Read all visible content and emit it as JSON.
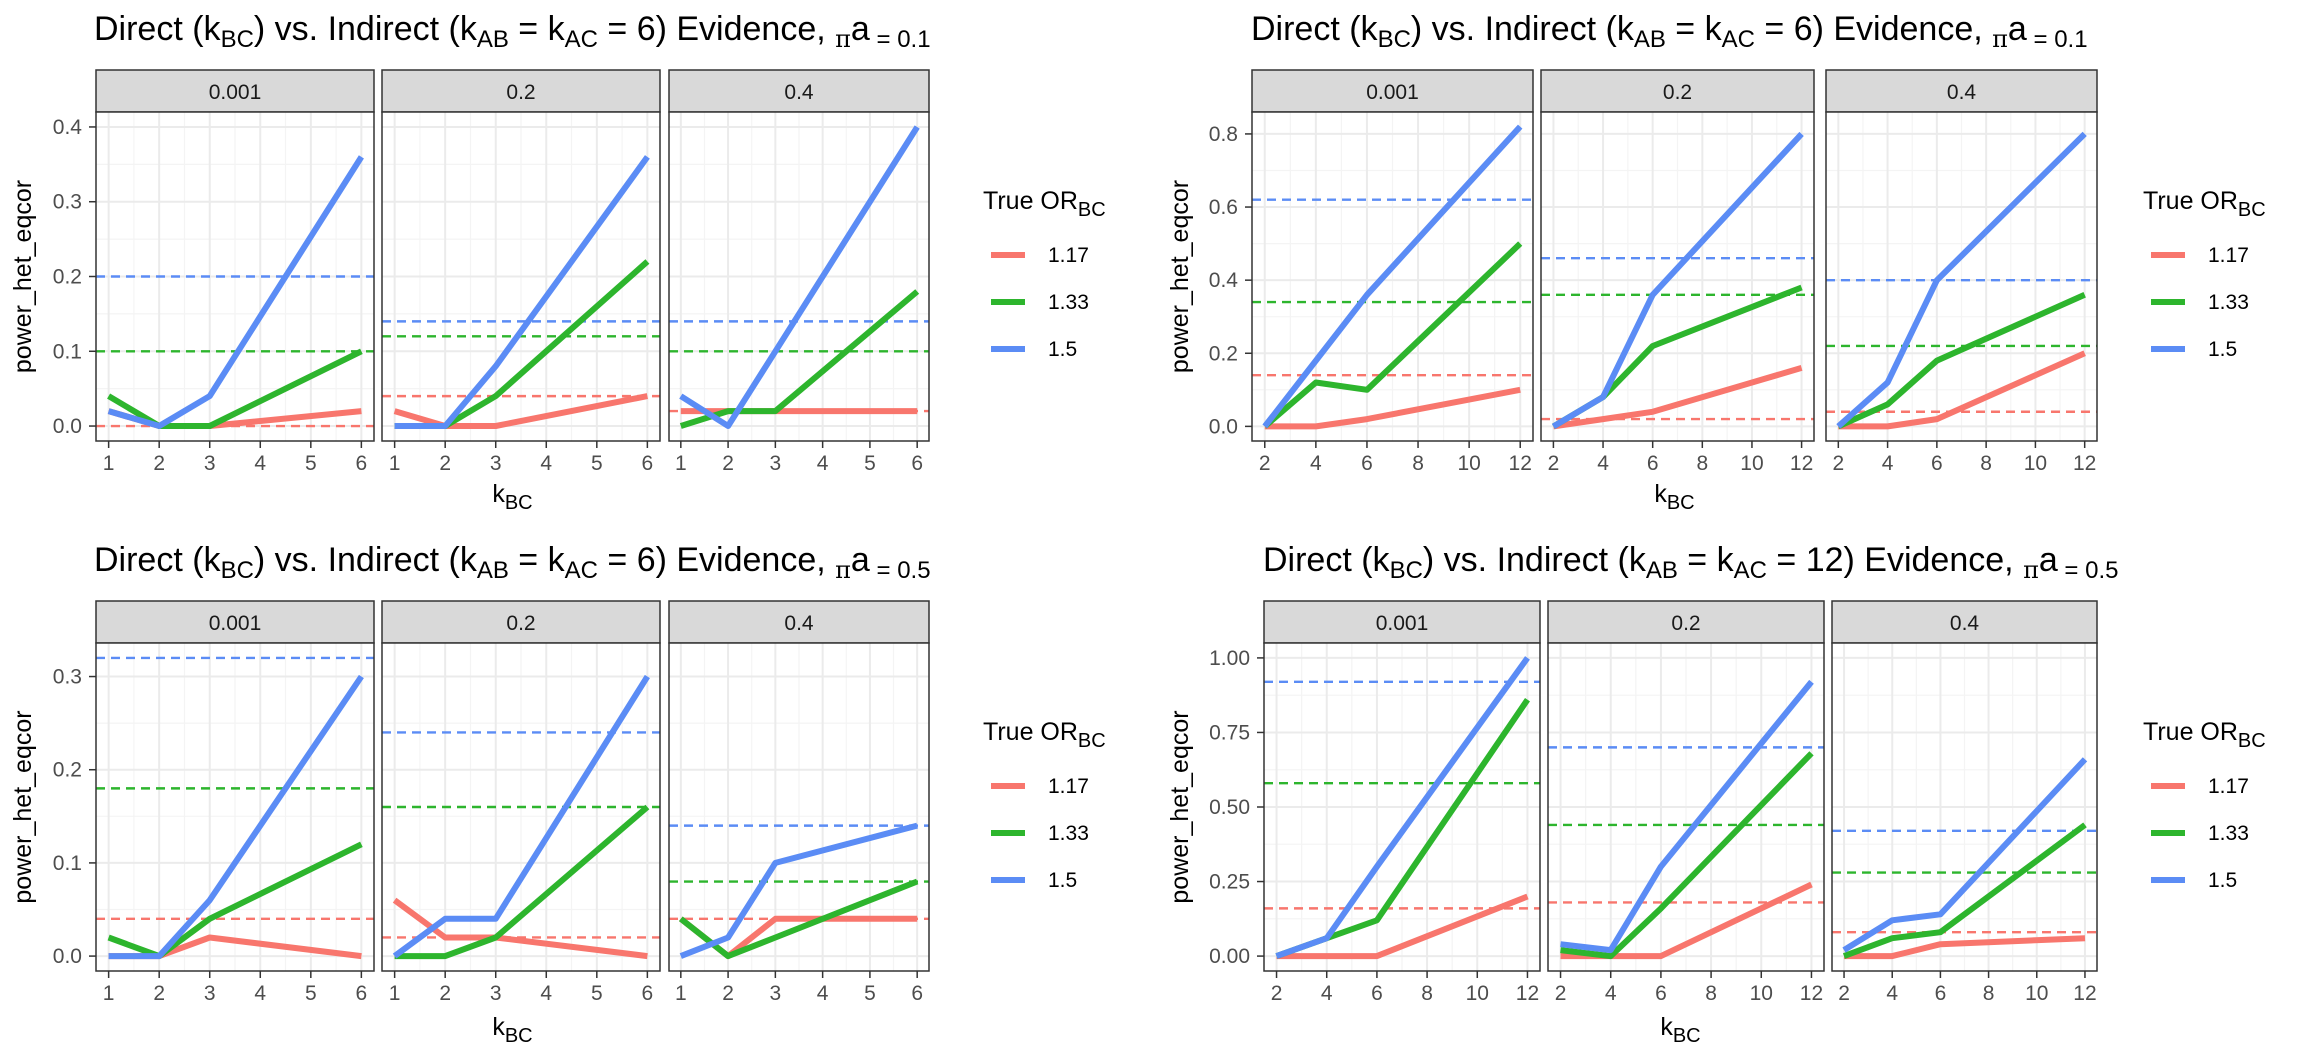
{
  "colors": {
    "1.17": "#F8766D",
    "1.33": "#2DB52D",
    "1.5": "#5B8CF5"
  },
  "chart_data": [
    {
      "type": "line",
      "title_parts": [
        "Direct (k",
        "BC",
        ") vs. Indirect (k",
        "AB",
        " = k",
        "AC",
        " = 6) Evidence, ",
        "π",
        "a",
        " = 0.1"
      ],
      "ylabel": "power_het_eqcor",
      "xlabel_parts": [
        "k",
        "BC"
      ],
      "legend_title_parts": [
        "True OR",
        "BC"
      ],
      "legend": [
        "1.17",
        "1.33",
        "1.5"
      ],
      "x": [
        1,
        2,
        3,
        4,
        5,
        6
      ],
      "xlim": [
        0.75,
        6.25
      ],
      "xticks": [
        1,
        2,
        3,
        4,
        5,
        6
      ],
      "xtick_labels": [
        "1",
        "2",
        "3",
        "4",
        "5",
        "6"
      ],
      "ylim": [
        -0.02,
        0.42
      ],
      "yticks": [
        0.0,
        0.1,
        0.2,
        0.3,
        0.4
      ],
      "ytick_labels": [
        "0.0",
        "0.1",
        "0.2",
        "0.3",
        "0.4"
      ],
      "facets": [
        {
          "label": "0.001",
          "series": [
            {
              "name": "1.17",
              "x": [
                1,
                2,
                3,
                6
              ],
              "values": [
                0.02,
                0.0,
                0.0,
                0.02
              ]
            },
            {
              "name": "1.33",
              "x": [
                1,
                2,
                3,
                6
              ],
              "values": [
                0.04,
                0.0,
                0.0,
                0.1
              ]
            },
            {
              "name": "1.5",
              "x": [
                1,
                2,
                3,
                6
              ],
              "values": [
                0.02,
                0.0,
                0.04,
                0.36
              ]
            }
          ],
          "reference": {
            "1.17": 0.0,
            "1.33": 0.1,
            "1.5": 0.2
          }
        },
        {
          "label": "0.2",
          "series": [
            {
              "name": "1.17",
              "x": [
                1,
                2,
                3,
                6
              ],
              "values": [
                0.02,
                0.0,
                0.0,
                0.04
              ]
            },
            {
              "name": "1.33",
              "x": [
                1,
                2,
                3,
                6
              ],
              "values": [
                0.0,
                0.0,
                0.04,
                0.22
              ]
            },
            {
              "name": "1.5",
              "x": [
                1,
                2,
                3,
                6
              ],
              "values": [
                0.0,
                0.0,
                0.08,
                0.36
              ]
            }
          ],
          "reference": {
            "1.17": 0.04,
            "1.33": 0.12,
            "1.5": 0.14
          }
        },
        {
          "label": "0.4",
          "series": [
            {
              "name": "1.17",
              "x": [
                1,
                2,
                3,
                6
              ],
              "values": [
                0.02,
                0.02,
                0.02,
                0.02
              ]
            },
            {
              "name": "1.33",
              "x": [
                1,
                2,
                3,
                6
              ],
              "values": [
                0.0,
                0.02,
                0.02,
                0.18
              ]
            },
            {
              "name": "1.5",
              "x": [
                1,
                2,
                3,
                6
              ],
              "values": [
                0.04,
                0.0,
                0.1,
                0.4
              ]
            }
          ],
          "reference": {
            "1.17": 0.02,
            "1.33": 0.1,
            "1.5": 0.14
          }
        }
      ]
    },
    {
      "type": "line",
      "title_parts": [
        "Direct (k",
        "BC",
        ") vs. Indirect (k",
        "AB",
        " = k",
        "AC",
        " = 6) Evidence, ",
        "π",
        "a",
        " = 0.1"
      ],
      "ylabel": "power_het_eqcor",
      "xlabel_parts": [
        "k",
        "BC"
      ],
      "legend_title_parts": [
        "True OR",
        "BC"
      ],
      "legend": [
        "1.17",
        "1.33",
        "1.5"
      ],
      "x": [
        2,
        4,
        6,
        12
      ],
      "xlim": [
        1.5,
        12.5
      ],
      "xticks": [
        2,
        4,
        6,
        8,
        10,
        12
      ],
      "xtick_labels": [
        "2",
        "4",
        "6",
        "8",
        "10",
        "12"
      ],
      "ylim": [
        -0.04,
        0.86
      ],
      "yticks": [
        0.0,
        0.2,
        0.4,
        0.6,
        0.8
      ],
      "ytick_labels": [
        "0.0",
        "0.2",
        "0.4",
        "0.6",
        "0.8"
      ],
      "facets": [
        {
          "label": "0.001",
          "series": [
            {
              "name": "1.17",
              "x": [
                2,
                4,
                6,
                12
              ],
              "values": [
                0.0,
                0.0,
                0.02,
                0.1
              ]
            },
            {
              "name": "1.33",
              "x": [
                2,
                4,
                6,
                12
              ],
              "values": [
                0.0,
                0.12,
                0.1,
                0.5
              ]
            },
            {
              "name": "1.5",
              "x": [
                2,
                4,
                6,
                12
              ],
              "values": [
                0.0,
                0.18,
                0.36,
                0.82
              ]
            }
          ],
          "reference": {
            "1.17": 0.14,
            "1.33": 0.34,
            "1.5": 0.62
          }
        },
        {
          "label": "0.2",
          "series": [
            {
              "name": "1.17",
              "x": [
                2,
                4,
                6,
                12
              ],
              "values": [
                0.0,
                0.02,
                0.04,
                0.16
              ]
            },
            {
              "name": "1.33",
              "x": [
                2,
                4,
                6,
                12
              ],
              "values": [
                0.0,
                0.08,
                0.22,
                0.38
              ]
            },
            {
              "name": "1.5",
              "x": [
                2,
                4,
                6,
                12
              ],
              "values": [
                0.0,
                0.08,
                0.36,
                0.8
              ]
            }
          ],
          "reference": {
            "1.17": 0.02,
            "1.33": 0.36,
            "1.5": 0.46
          }
        },
        {
          "label": "0.4",
          "series": [
            {
              "name": "1.17",
              "x": [
                2,
                4,
                6,
                12
              ],
              "values": [
                0.0,
                0.0,
                0.02,
                0.2
              ]
            },
            {
              "name": "1.33",
              "x": [
                2,
                4,
                6,
                12
              ],
              "values": [
                0.0,
                0.06,
                0.18,
                0.36
              ]
            },
            {
              "name": "1.5",
              "x": [
                2,
                4,
                6,
                12
              ],
              "values": [
                0.0,
                0.12,
                0.4,
                0.8
              ]
            }
          ],
          "reference": {
            "1.17": 0.04,
            "1.33": 0.22,
            "1.5": 0.4
          }
        }
      ]
    },
    {
      "type": "line",
      "title_parts": [
        "Direct (k",
        "BC",
        ") vs. Indirect (k",
        "AB",
        " = k",
        "AC",
        " = 6) Evidence, ",
        "π",
        "a",
        " = 0.5"
      ],
      "ylabel": "power_het_eqcor",
      "xlabel_parts": [
        "k",
        "BC"
      ],
      "legend_title_parts": [
        "True OR",
        "BC"
      ],
      "legend": [
        "1.17",
        "1.33",
        "1.5"
      ],
      "x": [
        1,
        2,
        3,
        4,
        5,
        6
      ],
      "xlim": [
        0.75,
        6.25
      ],
      "xticks": [
        1,
        2,
        3,
        4,
        5,
        6
      ],
      "xtick_labels": [
        "1",
        "2",
        "3",
        "4",
        "5",
        "6"
      ],
      "ylim": [
        -0.016,
        0.336
      ],
      "yticks": [
        0.0,
        0.1,
        0.2,
        0.3
      ],
      "ytick_labels": [
        "0.0",
        "0.1",
        "0.2",
        "0.3"
      ],
      "facets": [
        {
          "label": "0.001",
          "series": [
            {
              "name": "1.17",
              "x": [
                1,
                2,
                3,
                6
              ],
              "values": [
                0.0,
                0.0,
                0.02,
                0.0
              ]
            },
            {
              "name": "1.33",
              "x": [
                1,
                2,
                3,
                6
              ],
              "values": [
                0.02,
                0.0,
                0.04,
                0.12
              ]
            },
            {
              "name": "1.5",
              "x": [
                1,
                2,
                3,
                6
              ],
              "values": [
                0.0,
                0.0,
                0.06,
                0.3
              ]
            }
          ],
          "reference": {
            "1.17": 0.04,
            "1.33": 0.18,
            "1.5": 0.32
          }
        },
        {
          "label": "0.2",
          "series": [
            {
              "name": "1.17",
              "x": [
                1,
                2,
                3,
                6
              ],
              "values": [
                0.06,
                0.02,
                0.02,
                0.0
              ]
            },
            {
              "name": "1.33",
              "x": [
                1,
                2,
                3,
                6
              ],
              "values": [
                0.0,
                0.0,
                0.02,
                0.16
              ]
            },
            {
              "name": "1.5",
              "x": [
                1,
                2,
                3,
                6
              ],
              "values": [
                0.0,
                0.04,
                0.04,
                0.3
              ]
            }
          ],
          "reference": {
            "1.17": 0.02,
            "1.33": 0.16,
            "1.5": 0.24
          }
        },
        {
          "label": "0.4",
          "series": [
            {
              "name": "1.17",
              "x": [
                1,
                2,
                3,
                6
              ],
              "values": [
                0.04,
                0.0,
                0.04,
                0.04
              ]
            },
            {
              "name": "1.33",
              "x": [
                1,
                2,
                3,
                6
              ],
              "values": [
                0.04,
                0.0,
                0.02,
                0.08
              ]
            },
            {
              "name": "1.5",
              "x": [
                1,
                2,
                3,
                6
              ],
              "values": [
                0.0,
                0.02,
                0.1,
                0.14
              ]
            }
          ],
          "reference": {
            "1.17": 0.04,
            "1.33": 0.08,
            "1.5": 0.14
          }
        }
      ]
    },
    {
      "type": "line",
      "title_parts": [
        "Direct (k",
        "BC",
        ") vs. Indirect (k",
        "AB",
        " = k",
        "AC",
        " = 12) Evidence, ",
        "π",
        "a",
        " = 0.5"
      ],
      "ylabel": "power_het_eqcor",
      "xlabel_parts": [
        "k",
        "BC"
      ],
      "legend_title_parts": [
        "True OR",
        "BC"
      ],
      "legend": [
        "1.17",
        "1.33",
        "1.5"
      ],
      "x": [
        2,
        4,
        6,
        12
      ],
      "xlim": [
        1.5,
        12.5
      ],
      "xticks": [
        2,
        4,
        6,
        8,
        10,
        12
      ],
      "xtick_labels": [
        "2",
        "4",
        "6",
        "8",
        "10",
        "12"
      ],
      "ylim": [
        -0.05,
        1.05
      ],
      "yticks": [
        0.0,
        0.25,
        0.5,
        0.75,
        1.0
      ],
      "ytick_labels": [
        "0.00",
        "0.25",
        "0.50",
        "0.75",
        "1.00"
      ],
      "facets": [
        {
          "label": "0.001",
          "series": [
            {
              "name": "1.17",
              "x": [
                2,
                4,
                6,
                12
              ],
              "values": [
                0.0,
                0.0,
                0.0,
                0.2
              ]
            },
            {
              "name": "1.33",
              "x": [
                2,
                4,
                6,
                12
              ],
              "values": [
                0.0,
                0.06,
                0.12,
                0.86
              ]
            },
            {
              "name": "1.5",
              "x": [
                2,
                4,
                6,
                12
              ],
              "values": [
                0.0,
                0.06,
                0.3,
                1.0
              ]
            }
          ],
          "reference": {
            "1.17": 0.16,
            "1.33": 0.58,
            "1.5": 0.92
          }
        },
        {
          "label": "0.2",
          "series": [
            {
              "name": "1.17",
              "x": [
                2,
                4,
                6,
                12
              ],
              "values": [
                0.0,
                0.0,
                0.0,
                0.24
              ]
            },
            {
              "name": "1.33",
              "x": [
                2,
                4,
                6,
                12
              ],
              "values": [
                0.02,
                0.0,
                0.16,
                0.68
              ]
            },
            {
              "name": "1.5",
              "x": [
                2,
                4,
                6,
                12
              ],
              "values": [
                0.04,
                0.02,
                0.3,
                0.92
              ]
            }
          ],
          "reference": {
            "1.17": 0.18,
            "1.33": 0.44,
            "1.5": 0.7
          }
        },
        {
          "label": "0.4",
          "series": [
            {
              "name": "1.17",
              "x": [
                2,
                4,
                6,
                12
              ],
              "values": [
                0.0,
                0.0,
                0.04,
                0.06
              ]
            },
            {
              "name": "1.33",
              "x": [
                2,
                4,
                6,
                12
              ],
              "values": [
                0.0,
                0.06,
                0.08,
                0.44
              ]
            },
            {
              "name": "1.5",
              "x": [
                2,
                4,
                6,
                12
              ],
              "values": [
                0.02,
                0.12,
                0.14,
                0.66
              ]
            }
          ],
          "reference": {
            "1.17": 0.08,
            "1.33": 0.28,
            "1.5": 0.42
          }
        }
      ]
    }
  ]
}
